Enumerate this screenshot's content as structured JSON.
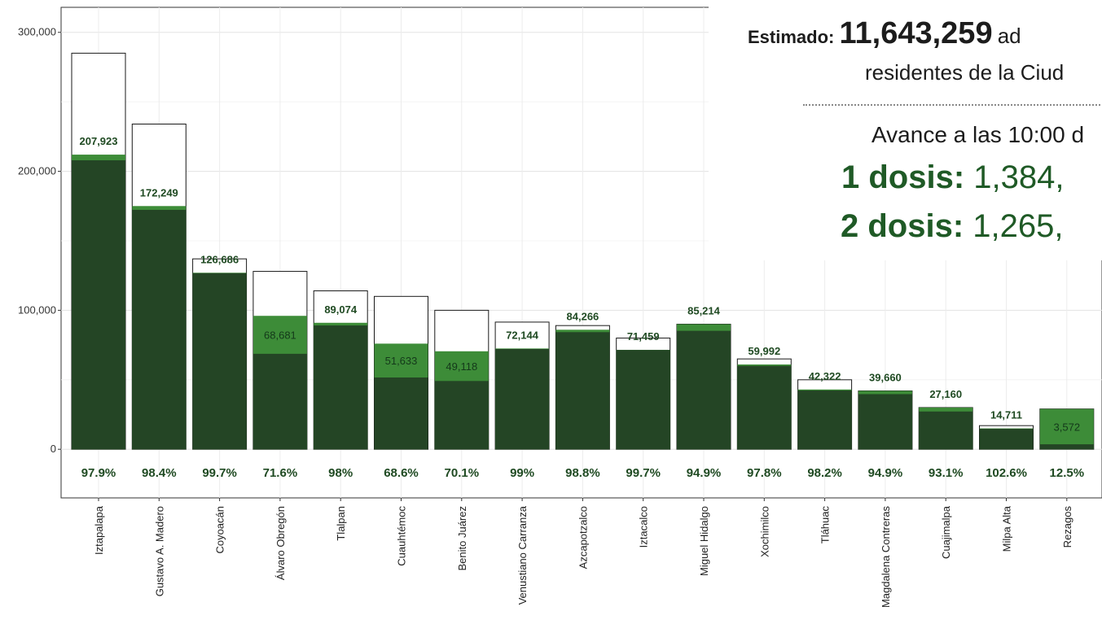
{
  "chart_data": {
    "type": "bar",
    "categories": [
      "Iztapalapa",
      "Gustavo A. Madero",
      "Coyoacán",
      "Álvaro Obregón",
      "Tlalpan",
      "Cuauhtémoc",
      "Benito Juárez",
      "Venustiano Carranza",
      "Azcapotzalco",
      "Iztacalco",
      "Miguel Hidalgo",
      "Xochimilco",
      "Tláhuac",
      "Magdalena Contreras",
      "Cuajimalpa",
      "Milpa Alta",
      "Rezagos"
    ],
    "series": [
      {
        "values": [
          285000,
          234000,
          137000,
          128000,
          114000,
          110000,
          100000,
          91500,
          89000,
          80000,
          90000,
          65000,
          50000,
          42000,
          30000,
          17000,
          29000
        ]
      },
      {
        "values": [
          212000,
          175000,
          127000,
          96000,
          91000,
          76000,
          70500,
          72500,
          86000,
          71500,
          90000,
          61000,
          43000,
          42000,
          30000,
          15000,
          29000
        ]
      },
      {
        "values": [
          207923,
          172249,
          126686,
          68681,
          89074,
          51633,
          49118,
          72144,
          84266,
          71459,
          85214,
          59992,
          42322,
          39660,
          27160,
          14711,
          3572
        ]
      }
    ],
    "data_labels": [
      "207,923",
      "172,249",
      "126,686",
      "68,681",
      "89,074",
      "51,633",
      "49,118",
      "72,144",
      "84,266",
      "71,459",
      "85,214",
      "59,992",
      "42,322",
      "39,660",
      "27,160",
      "14,711",
      "3,572"
    ],
    "percent_labels": [
      "97.9%",
      "98.4%",
      "99.7%",
      "71.6%",
      "98%",
      "68.6%",
      "70.1%",
      "99%",
      "98.8%",
      "99.7%",
      "94.9%",
      "97.8%",
      "98.2%",
      "94.9%",
      "93.1%",
      "102.6%",
      "12.5%"
    ],
    "y_ticks": [
      0,
      100000,
      200000,
      300000
    ],
    "y_tick_labels": [
      "0",
      "100,000",
      "200,000",
      "300,000"
    ],
    "ylim": [
      -35000,
      318000
    ],
    "grid": true,
    "colors": {
      "dark": "#244525",
      "light": "#3d8c38",
      "outline": "#1a1a1a",
      "label": "#1f4a22"
    }
  },
  "overlay": {
    "estimado_prefix": "Estimado:",
    "estimado_number": "11,643,259",
    "estimado_rest": "ad",
    "residentes": "residentes de la Ciud",
    "avance": "Avance a las 10:00 d",
    "dosis1_label": "1 dosis:",
    "dosis1_value": "1,384,",
    "dosis2_label": "2 dosis:",
    "dosis2_value": "1,265,"
  }
}
